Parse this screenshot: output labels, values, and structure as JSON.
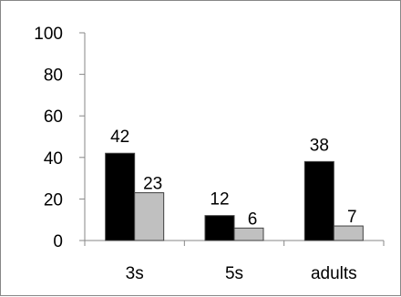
{
  "chart_data": {
    "type": "bar",
    "categories": [
      "3s",
      "5s",
      "adults"
    ],
    "series": [
      {
        "values": [
          42,
          12,
          38
        ],
        "color": "#000000"
      },
      {
        "values": [
          23,
          6,
          7
        ],
        "color": "#c0c0c0"
      }
    ],
    "ylim": [
      0,
      100
    ],
    "yticks": [
      0,
      20,
      40,
      60,
      80,
      100
    ],
    "grid": false,
    "legend": "none",
    "title": "",
    "xlabel": "",
    "ylabel": ""
  }
}
